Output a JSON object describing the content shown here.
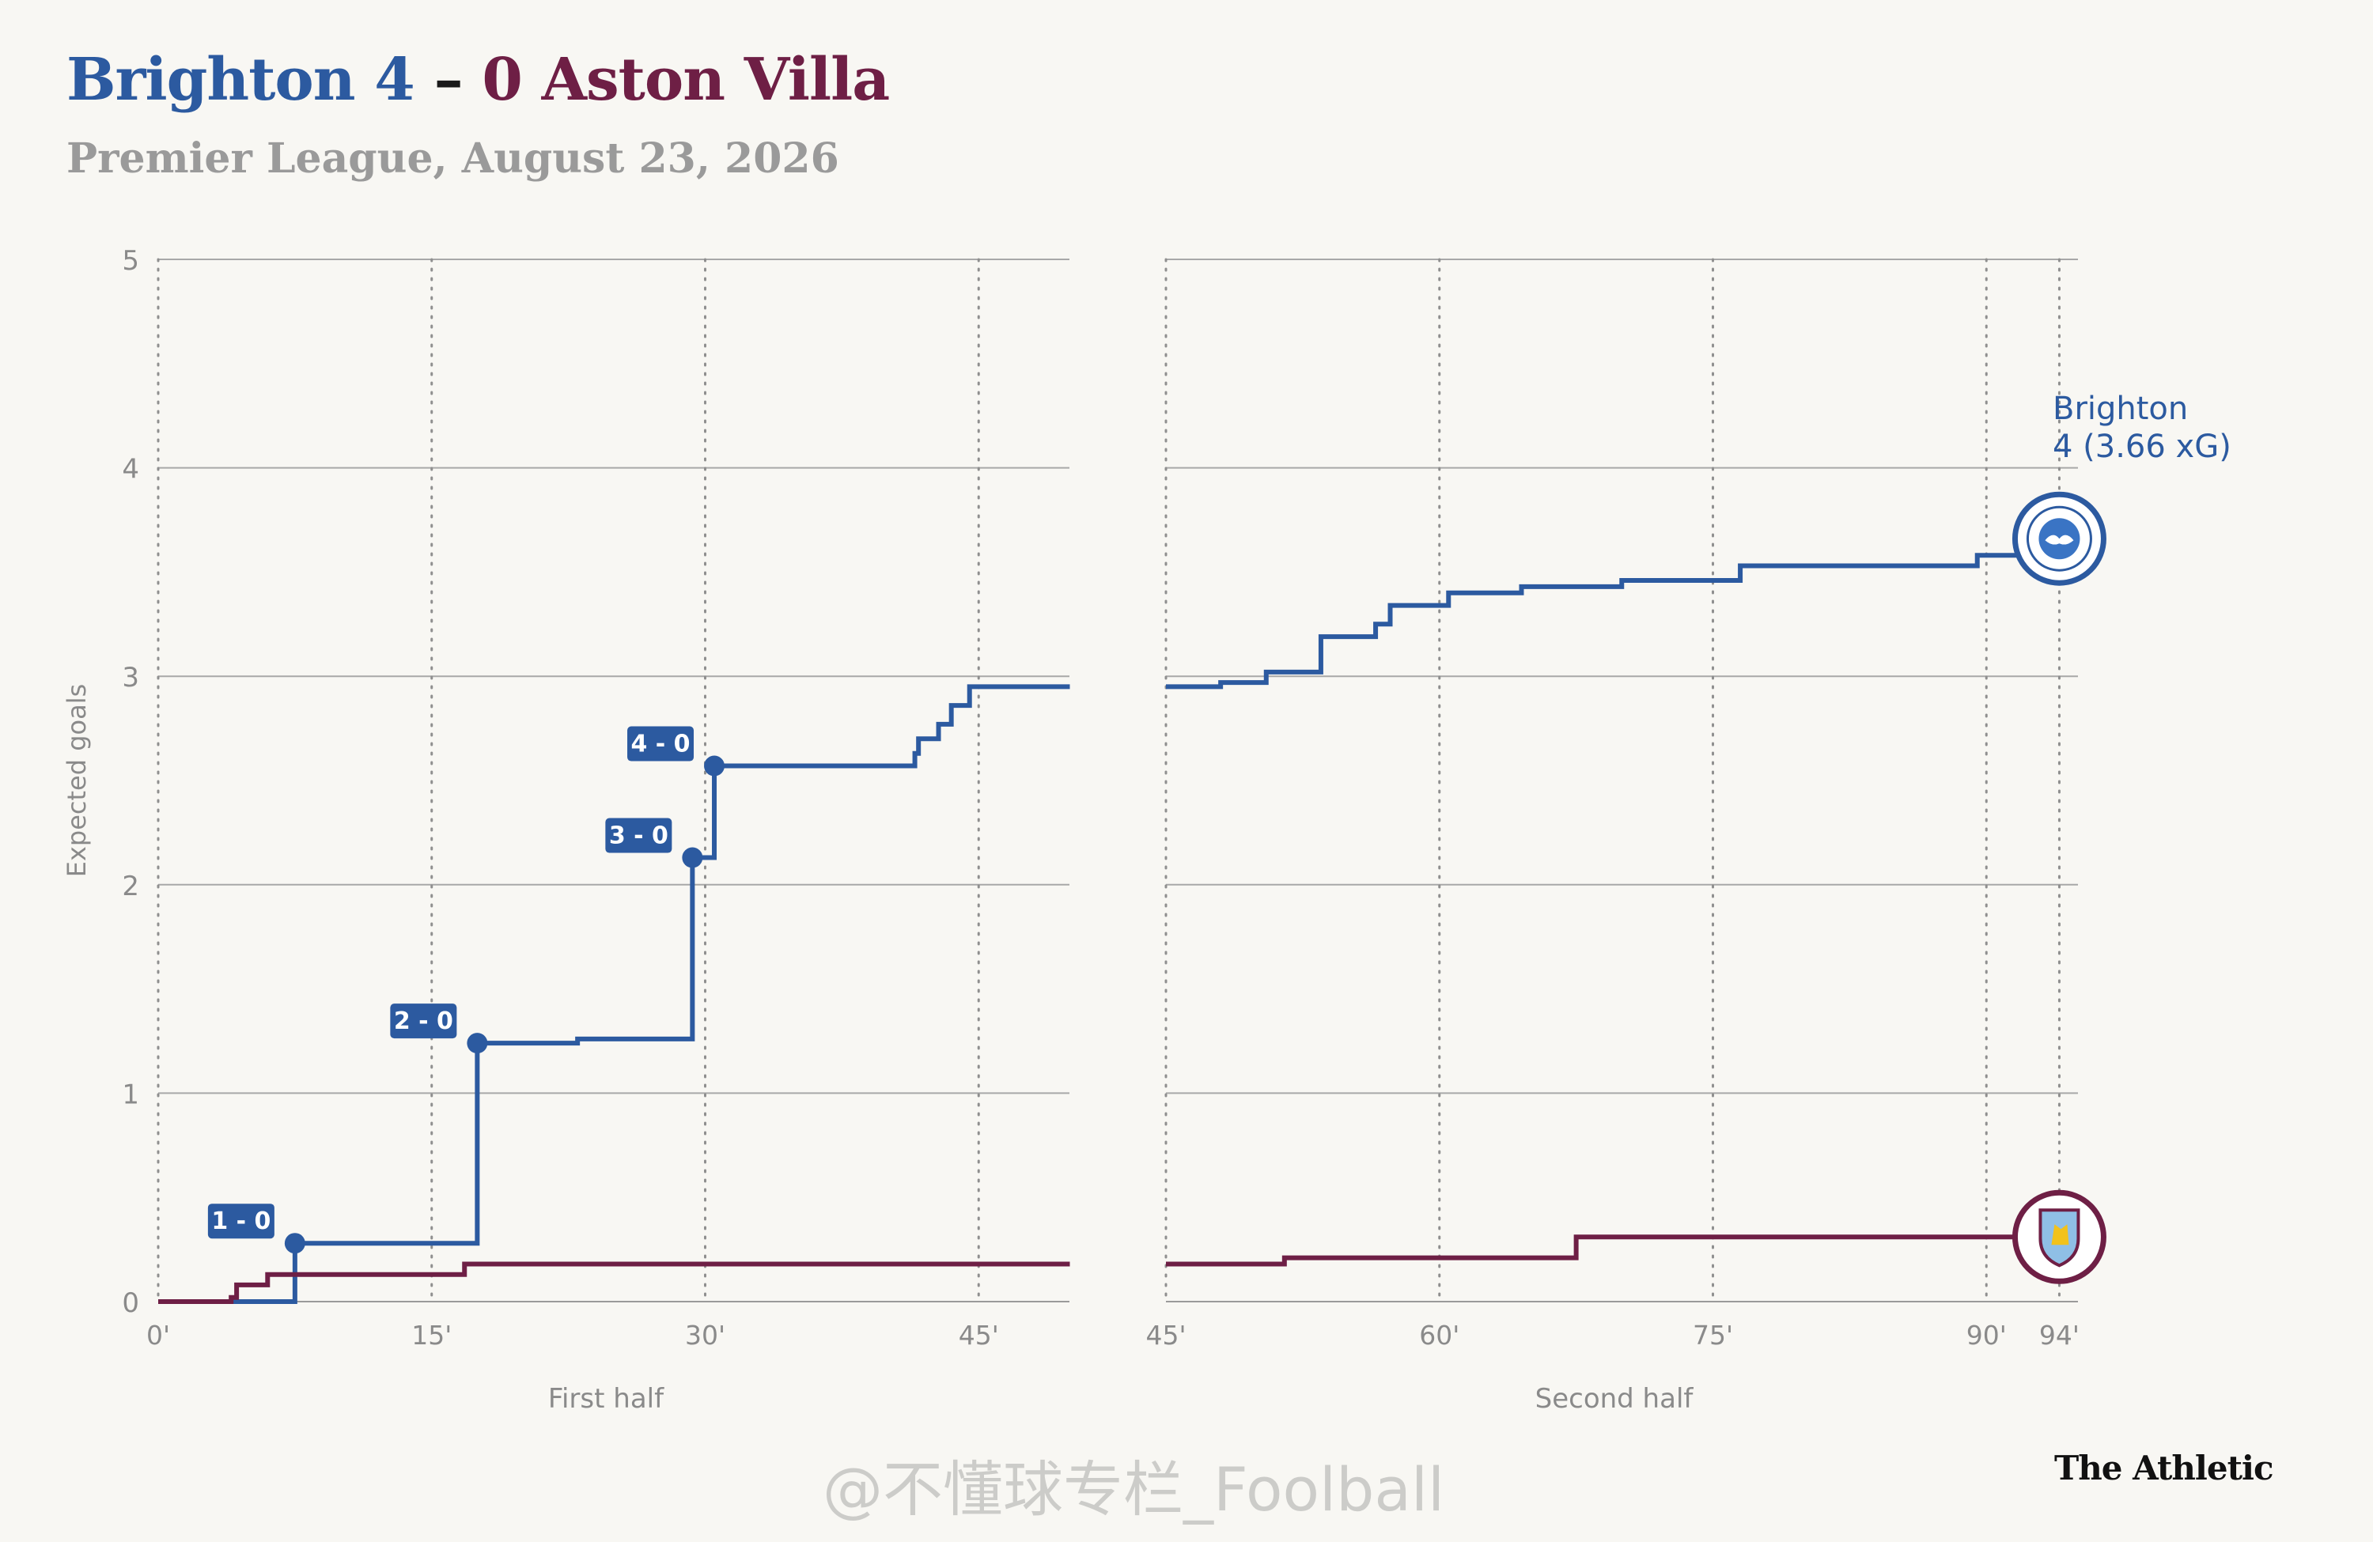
{
  "header": {
    "home_team": "Brighton",
    "home_score": "4",
    "separator": "–",
    "away_score": "0",
    "away_team": "Aston Villa",
    "subtitle": "Premier League, August 23, 2026"
  },
  "brand": "The Athletic",
  "watermark": "@不懂球专栏_Foolball",
  "colors": {
    "home": "#2c5aa0",
    "away": "#6e1f45",
    "background": "#f8f7f3",
    "grid": "#a8a8a8",
    "axis_text": "#8a8a8a"
  },
  "chart_data": {
    "type": "line",
    "step": true,
    "ylabel": "Expected goals",
    "ylim": [
      0,
      5
    ],
    "yticks": [
      "0",
      "1",
      "2",
      "3",
      "4",
      "5"
    ],
    "grid": true,
    "panels": [
      {
        "xlabel": "First half",
        "xlim": [
          0,
          50
        ],
        "xticks": [
          {
            "x": 0,
            "label": "0'"
          },
          {
            "x": 15,
            "label": "15'"
          },
          {
            "x": 30,
            "label": "30'"
          },
          {
            "x": 45,
            "label": "45'"
          }
        ]
      },
      {
        "xlabel": "Second half",
        "xlim": [
          45,
          95
        ],
        "xticks": [
          {
            "x": 45,
            "label": "45'"
          },
          {
            "x": 60,
            "label": "60'"
          },
          {
            "x": 75,
            "label": "75'"
          },
          {
            "x": 90,
            "label": "90'"
          },
          {
            "x": 94,
            "label": "94'"
          }
        ]
      }
    ],
    "series": [
      {
        "team": "home",
        "end_label": [
          "Brighton",
          "4 (3.66 xG)"
        ],
        "halves": [
          [
            [
              0,
              0
            ],
            [
              7.5,
              0.28
            ],
            [
              17.5,
              1.24
            ],
            [
              23,
              1.26
            ],
            [
              29.3,
              2.13
            ],
            [
              30.5,
              2.57
            ],
            [
              41.5,
              2.63
            ],
            [
              41.7,
              2.7
            ],
            [
              42.8,
              2.77
            ],
            [
              43.5,
              2.86
            ],
            [
              44.5,
              2.95
            ],
            [
              50,
              2.95
            ]
          ],
          [
            [
              45,
              2.95
            ],
            [
              48,
              2.97
            ],
            [
              50.5,
              3.02
            ],
            [
              53.5,
              3.19
            ],
            [
              56.5,
              3.25
            ],
            [
              57.3,
              3.34
            ],
            [
              60.5,
              3.4
            ],
            [
              64.5,
              3.43
            ],
            [
              70,
              3.46
            ],
            [
              76.5,
              3.53
            ],
            [
              89.5,
              3.58
            ],
            [
              93.5,
              3.66
            ],
            [
              94,
              3.66
            ]
          ]
        ],
        "goals": [
          {
            "x": 7.5,
            "y": 0.28,
            "label": "1 - 0"
          },
          {
            "x": 17.5,
            "y": 1.24,
            "label": "2 - 0"
          },
          {
            "x": 29.3,
            "y": 2.13,
            "label": "3 - 0"
          },
          {
            "x": 30.5,
            "y": 2.57,
            "label": "4 - 0"
          }
        ]
      },
      {
        "team": "away",
        "halves": [
          [
            [
              0,
              0
            ],
            [
              4,
              0.02
            ],
            [
              4.3,
              0.08
            ],
            [
              6,
              0.13
            ],
            [
              16.8,
              0.18
            ],
            [
              50,
              0.18
            ]
          ],
          [
            [
              45,
              0.18
            ],
            [
              51.5,
              0.21
            ],
            [
              67.5,
              0.31
            ],
            [
              94,
              0.31
            ]
          ]
        ],
        "goals": []
      }
    ]
  }
}
